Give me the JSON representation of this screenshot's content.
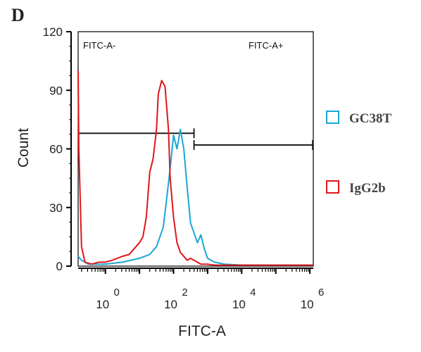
{
  "panel_label": "D",
  "chart_data": {
    "type": "line",
    "xlabel": "FITC-A",
    "ylabel": "Count",
    "x_scale": "log",
    "xlim": [
      -0.8,
      6.1
    ],
    "ylim": [
      0,
      120
    ],
    "y_ticks": [
      0,
      30,
      60,
      90,
      120
    ],
    "x_tick_labels": [
      {
        "base": "10",
        "exp": "0",
        "value": 0
      },
      {
        "base": "10",
        "exp": "2",
        "value": 2
      },
      {
        "base": "10",
        "exp": "4",
        "value": 4
      },
      {
        "base": "10",
        "exp": "6",
        "value": 6
      }
    ],
    "gates": [
      {
        "label": "FITC-A-",
        "x_from": -0.8,
        "x_to": 2.6,
        "y": 68
      },
      {
        "label": "FITC-A+",
        "x_from": 2.6,
        "x_to": 6.1,
        "y": 62
      }
    ],
    "legend_position": "right",
    "series": [
      {
        "name": "GC38T",
        "color": "#1aa7d4",
        "x": [
          -0.8,
          -0.7,
          -0.6,
          -0.5,
          0.0,
          0.5,
          1.0,
          1.3,
          1.5,
          1.7,
          1.8,
          1.9,
          2.0,
          2.1,
          2.2,
          2.3,
          2.4,
          2.5,
          2.6,
          2.7,
          2.8,
          2.9,
          3.0,
          3.2,
          3.5,
          4.0,
          6.1
        ],
        "y": [
          5,
          3,
          2,
          1,
          1,
          2,
          4,
          6,
          10,
          20,
          35,
          50,
          67,
          60,
          70,
          60,
          40,
          22,
          17,
          12,
          16,
          9,
          4,
          2,
          1,
          0.5,
          0.5
        ]
      },
      {
        "name": "IgG2b",
        "color": "#e0161b",
        "x": [
          -0.8,
          -0.78,
          -0.7,
          -0.6,
          -0.4,
          -0.2,
          0.0,
          0.2,
          0.5,
          0.7,
          0.8,
          1.0,
          1.1,
          1.2,
          1.3,
          1.4,
          1.5,
          1.55,
          1.65,
          1.75,
          1.85,
          1.9,
          2.0,
          2.1,
          2.2,
          2.3,
          2.4,
          2.5,
          2.6,
          2.7,
          2.8,
          3.0,
          3.2,
          3.6,
          6.1
        ],
        "y": [
          100,
          60,
          10,
          2,
          1,
          2,
          2,
          3,
          5,
          6,
          8,
          12,
          15,
          25,
          48,
          55,
          70,
          88,
          95,
          92,
          70,
          45,
          25,
          12,
          7,
          5,
          3,
          4,
          3,
          2,
          1,
          1,
          0.5,
          0.5,
          0.5
        ]
      }
    ]
  }
}
